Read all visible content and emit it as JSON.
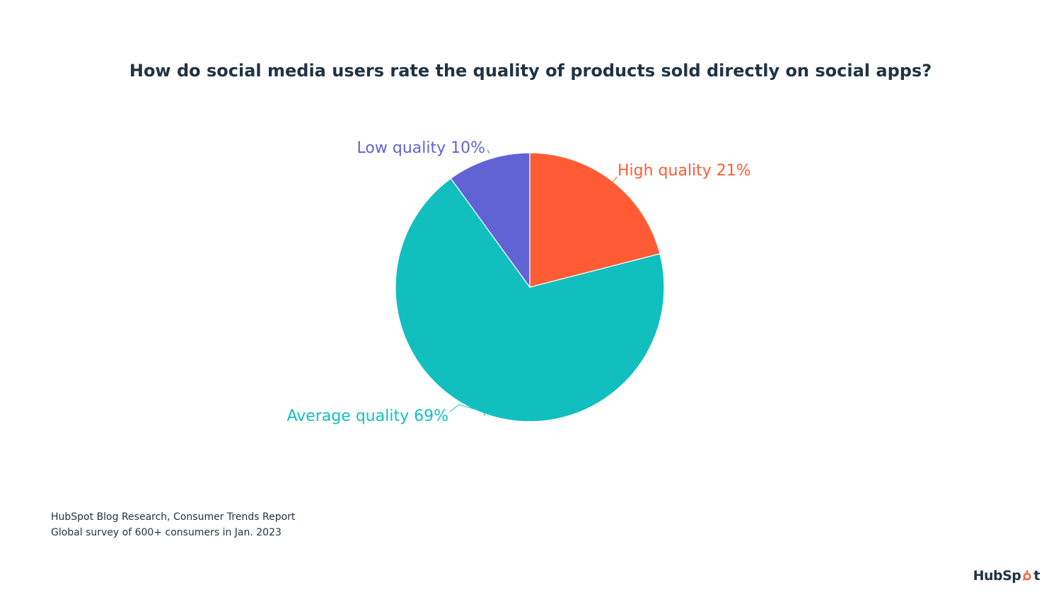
{
  "chart_data": {
    "type": "pie",
    "title": "How do social media users rate the quality of products sold directly on social apps?",
    "slices": [
      {
        "label": "High quality",
        "value": 21,
        "display": "High quality 21%",
        "color": "#ff5c35"
      },
      {
        "label": "Average quality",
        "value": 69,
        "display": "Average quality 69%",
        "color": "#11bfbf"
      },
      {
        "label": "Low quality",
        "value": 10,
        "display": "Low quality 10%",
        "color": "#6163d5"
      }
    ]
  },
  "source": {
    "line1": "HubSpot Blog Research, Consumer Trends Report",
    "line2": "Global survey of 600+ consumers in Jan. 2023"
  },
  "logo": {
    "text_left": "HubSp",
    "text_right": "t",
    "color": "#ff5c35"
  }
}
